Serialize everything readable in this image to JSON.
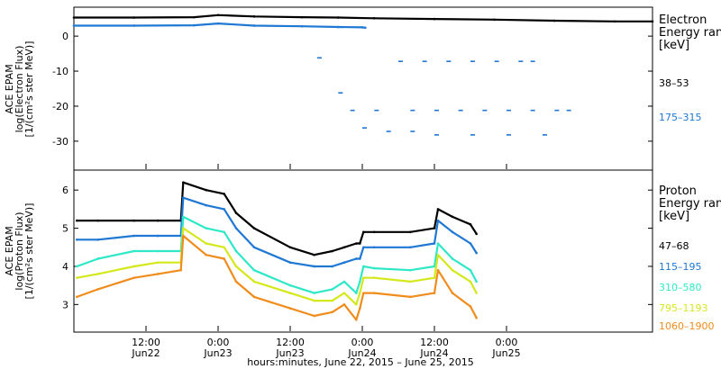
{
  "chart_data": [
    {
      "type": "scatter",
      "ylabel": [
        "ACE EPAM",
        "log(Electron Flux)",
        "[1/(cm²s ster MeV)]"
      ],
      "ylim": [
        -38,
        8
      ],
      "yticks": [
        0,
        -10,
        -20,
        -30
      ],
      "legend": {
        "placement": "right",
        "title": [
          "Electron",
          "Energy ranges",
          "[keV]"
        ]
      },
      "series": [
        {
          "name": "38–53",
          "color": "#000000",
          "x": [
            0,
            10,
            20,
            24,
            30,
            38,
            44,
            50,
            60,
            70,
            80,
            90,
            96.3
          ],
          "y": [
            5.3,
            5.3,
            5.4,
            6.0,
            5.6,
            5.4,
            5.3,
            5.1,
            4.9,
            4.7,
            4.4,
            4.2,
            4.2
          ]
        },
        {
          "name": "175–315",
          "color": "#1f78d4",
          "x": [
            0,
            10,
            20,
            24,
            30,
            38,
            44,
            48,
            48.5
          ],
          "y": [
            3.0,
            3.0,
            3.1,
            3.6,
            3.0,
            2.8,
            2.6,
            2.5,
            2.4
          ],
          "scatter_x": [
            40.5,
            44,
            54,
            58,
            62,
            66,
            70,
            74,
            76,
            46,
            50,
            56,
            60,
            64,
            68,
            72,
            76,
            80,
            82,
            48,
            52,
            56,
            60,
            66,
            72,
            78
          ],
          "scatter_y": [
            -6,
            -16,
            -7,
            -7,
            -7,
            -7,
            -7,
            -7,
            -7,
            -21,
            -21,
            -21,
            -21,
            -21,
            -21,
            -21,
            -21,
            -21,
            -21,
            -26,
            -27,
            -27,
            -28,
            -28,
            -28,
            -28
          ]
        }
      ]
    },
    {
      "type": "scatter",
      "ylabel": [
        "ACE EPAM",
        "log(Proton Flux)",
        "[1/(cm²s ster MeV)]"
      ],
      "ylim": [
        2.3,
        6.5
      ],
      "yticks": [
        3,
        4,
        5,
        6
      ],
      "legend": {
        "placement": "right",
        "title": [
          "Proton",
          "Energy ranges",
          "[keV]"
        ]
      },
      "xlabel": "hours:minutes, June 22, 2015 – June 25, 2015",
      "xlim": [
        0,
        96.3
      ],
      "x_ticks": [
        {
          "x": 12,
          "time": "12:00",
          "date": "Jun22"
        },
        {
          "x": 24,
          "time": "0:00",
          "date": "Jun23"
        },
        {
          "x": 36,
          "time": "12:00",
          "date": "Jun23"
        },
        {
          "x": 48,
          "time": "0:00",
          "date": "Jun24"
        },
        {
          "x": 60,
          "time": "12:00",
          "date": "Jun24"
        },
        {
          "x": 72,
          "time": "0:00",
          "date": "Jun25"
        }
      ],
      "series": [
        {
          "name": "47–68",
          "color": "#000000",
          "x": [
            0.5,
            4,
            10,
            14,
            17.8,
            18.2,
            22,
            25,
            27,
            30,
            36,
            40,
            43,
            45,
            47,
            47.6,
            48.2,
            50,
            56,
            60,
            60.6,
            63,
            66,
            67
          ],
          "y": [
            5.2,
            5.2,
            5.2,
            5.2,
            5.2,
            6.2,
            6.0,
            5.9,
            5.4,
            5.0,
            4.5,
            4.3,
            4.4,
            4.5,
            4.6,
            4.6,
            4.9,
            4.9,
            4.9,
            5.0,
            5.5,
            5.3,
            5.1,
            4.85
          ]
        },
        {
          "name": "115–195",
          "color": "#1f78d4",
          "x": [
            0.5,
            4,
            10,
            14,
            17.8,
            18.2,
            22,
            25,
            27,
            30,
            36,
            40,
            43,
            45,
            47,
            47.6,
            48.2,
            50,
            56,
            60,
            60.6,
            63,
            66,
            67
          ],
          "y": [
            4.7,
            4.7,
            4.8,
            4.8,
            4.8,
            5.8,
            5.6,
            5.5,
            5.0,
            4.5,
            4.1,
            4.0,
            4.0,
            4.1,
            4.2,
            4.2,
            4.5,
            4.5,
            4.5,
            4.6,
            5.2,
            4.9,
            4.6,
            4.35
          ]
        },
        {
          "name": "310–580",
          "color": "#2ee8c8",
          "x": [
            0.5,
            4,
            10,
            14,
            17.8,
            18.2,
            22,
            25,
            27,
            30,
            36,
            40,
            43,
            45,
            47,
            47.6,
            48.2,
            50,
            56,
            60,
            60.6,
            63,
            66,
            67
          ],
          "y": [
            4.0,
            4.2,
            4.4,
            4.4,
            4.4,
            5.3,
            5.0,
            4.9,
            4.4,
            3.9,
            3.5,
            3.3,
            3.4,
            3.6,
            3.3,
            3.6,
            4.0,
            3.95,
            3.9,
            4.0,
            4.6,
            4.2,
            3.9,
            3.6
          ]
        },
        {
          "name": "795–1193",
          "color": "#d4e81c",
          "x": [
            0.5,
            4,
            10,
            14,
            17.8,
            18.2,
            22,
            25,
            27,
            30,
            36,
            40,
            43,
            45,
            47,
            47.6,
            48.2,
            50,
            56,
            60,
            60.6,
            63,
            66,
            67
          ],
          "y": [
            3.7,
            3.8,
            4.0,
            4.1,
            4.1,
            5.0,
            4.6,
            4.5,
            4.0,
            3.6,
            3.3,
            3.1,
            3.1,
            3.3,
            3.0,
            3.3,
            3.7,
            3.7,
            3.6,
            3.7,
            4.3,
            3.9,
            3.6,
            3.3
          ]
        },
        {
          "name": "1060–1900",
          "color": "#f08c1c",
          "x": [
            0.5,
            4,
            10,
            14,
            17.8,
            18.2,
            22,
            25,
            27,
            30,
            36,
            40,
            43,
            45,
            47,
            47.6,
            48.2,
            50,
            56,
            60,
            60.6,
            63,
            66,
            67
          ],
          "y": [
            3.2,
            3.4,
            3.7,
            3.8,
            3.9,
            4.8,
            4.3,
            4.2,
            3.6,
            3.2,
            2.9,
            2.7,
            2.8,
            3.0,
            2.6,
            2.9,
            3.3,
            3.3,
            3.2,
            3.3,
            3.9,
            3.3,
            2.95,
            2.65
          ]
        }
      ]
    }
  ]
}
